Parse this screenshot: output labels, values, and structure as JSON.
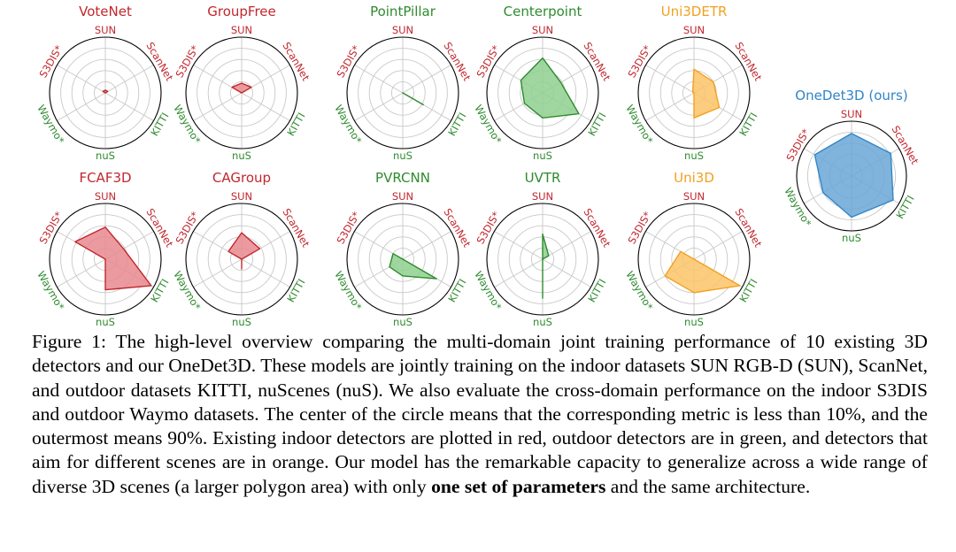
{
  "colors": {
    "indoor": "#c1272d",
    "outdoor": "#2e8b2e",
    "mixed": "#f2a11f",
    "ours": "#2f86c8",
    "fill_indoor": "#e88a8f",
    "fill_outdoor": "#8fd08f",
    "fill_mixed": "#fdc468",
    "fill_ours": "#6aa7d6"
  },
  "chart_data": {
    "type": "radar",
    "axes": [
      "SUN",
      "ScanNet",
      "KITTI",
      "nuS",
      "Waymo*",
      "S3DIS*"
    ],
    "axis_domain": [
      "indoor",
      "indoor",
      "outdoor",
      "outdoor",
      "outdoor",
      "indoor"
    ],
    "scale_min_pct": 10,
    "scale_max_pct": 90,
    "charts": [
      {
        "title": "VoteNet",
        "category": "indoor",
        "values": [
          14,
          14,
          10,
          10,
          10,
          14
        ]
      },
      {
        "title": "GroupFree",
        "category": "indoor",
        "values": [
          24,
          26,
          10,
          10,
          10,
          26
        ]
      },
      {
        "title": "PointPillar",
        "category": "outdoor",
        "values": [
          10,
          10,
          44,
          10,
          10,
          10
        ]
      },
      {
        "title": "Centerpoint",
        "category": "outdoor",
        "values": [
          60,
          40,
          70,
          46,
          40,
          46
        ]
      },
      {
        "title": "Uni3DETR",
        "category": "mixed",
        "values": [
          44,
          42,
          52,
          46,
          10,
          12
        ]
      },
      {
        "title": "FCAF3D",
        "category": "indoor",
        "values": [
          56,
          40,
          86,
          54,
          10,
          60
        ]
      },
      {
        "title": "CAGroup",
        "category": "indoor",
        "values": [
          48,
          40,
          10,
          24,
          10,
          32
        ]
      },
      {
        "title": "PVRCNN",
        "category": "outdoor",
        "values": [
          10,
          10,
          66,
          34,
          32,
          26
        ]
      },
      {
        "title": "UVTR",
        "category": "outdoor",
        "values": [
          46,
          20,
          10,
          66,
          10,
          10
        ]
      },
      {
        "title": "Uni3D",
        "category": "mixed",
        "values": [
          10,
          10,
          86,
          58,
          58,
          32
        ]
      },
      {
        "title": "OneDet3D (ours)",
        "category": "ours",
        "values": [
          72,
          76,
          80,
          70,
          58,
          72
        ]
      }
    ]
  },
  "caption": {
    "part1": "Figure 1: The high-level overview comparing the multi-domain joint training performance of 10 existing 3D detectors and our OneDet3D. These models are jointly training on the indoor datasets SUN RGB-D (SUN), ScanNet, and outdoor datasets KITTI, nuScenes (nuS). We also evaluate the cross-domain performance on the indoor S3DIS and outdoor Waymo datasets. The center of the circle means that the corresponding metric is less than 10%, and the outermost means 90%. Existing indoor detectors are plotted in red, outdoor detectors are in green, and detectors that aim for different scenes are in orange. Our model has the remarkable capacity to generalize across a wide range of diverse 3D scenes (a larger polygon area) with only ",
    "bold": "one set of parameters",
    "part2": " and the same architecture."
  }
}
